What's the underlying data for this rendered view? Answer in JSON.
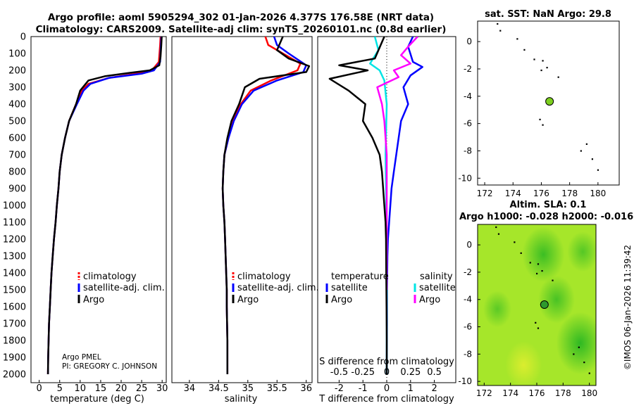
{
  "header": {
    "title_line1": "Argo profile: aoml 5905294_302 01-Jan-2026 4.377S 176.58E (NRT data)",
    "title_line2": "Climatology: CARS2009. Satellite-adj clim: synTS_20260101.nc (0.8d earlier)"
  },
  "footer": {
    "imos_stamp": "©IMOS 06-Jan-2026 11:39:42",
    "argo_credit": "Argo PMEL",
    "pi_credit": "PI: GREGORY C. JOHNSON"
  },
  "colors": {
    "argo": "#000000",
    "climatology": "#ff0000",
    "satellite_clim": "#0000ff",
    "temp_diff_satellite": "#0000ff",
    "sal_diff_satellite": "#00e5e5",
    "sal_diff_argo": "#ff00ff",
    "map_marker": "#7ccf1f"
  },
  "chart_data": [
    {
      "type": "line",
      "title": "",
      "xlabel": "temperature (deg C)",
      "ylabel": "",
      "xlim": [
        -2,
        31
      ],
      "ylim": [
        2050,
        0
      ],
      "xticks": [
        0,
        5,
        10,
        15,
        20,
        25,
        30
      ],
      "yticks": [
        0,
        100,
        200,
        300,
        400,
        500,
        600,
        700,
        800,
        900,
        1000,
        1100,
        1200,
        1300,
        1400,
        1500,
        1600,
        1700,
        1800,
        1900,
        2000
      ],
      "legend": [
        "climatology",
        "satellite-adj. clim.",
        "Argo"
      ],
      "series": [
        {
          "name": "climatology",
          "color": "#ff0000",
          "x": [
            29.6,
            29.5,
            29.2,
            27.5,
            23.5,
            17.0,
            12.0,
            10.4,
            9.0,
            7.3,
            6.3,
            5.5,
            5.0,
            4.7,
            4.3,
            4.0,
            3.6,
            3.3,
            3.0,
            2.8,
            2.6,
            2.4,
            2.3,
            2.2,
            2.15
          ],
          "y": [
            0,
            50,
            150,
            200,
            220,
            245,
            280,
            320,
            400,
            500,
            600,
            700,
            800,
            900,
            1000,
            1100,
            1200,
            1300,
            1400,
            1500,
            1600,
            1700,
            1800,
            1900,
            2000
          ]
        },
        {
          "name": "satellite-adj. clim.",
          "color": "#0000ff",
          "x": [
            29.8,
            29.7,
            29.5,
            28.0,
            25.0,
            17.0,
            12.5,
            10.8,
            9.2,
            7.3,
            6.3,
            5.5,
            5.0,
            4.7,
            4.3,
            4.0,
            3.6,
            3.3,
            3.0,
            2.8,
            2.6,
            2.4,
            2.3,
            2.2,
            2.15
          ],
          "y": [
            0,
            50,
            150,
            200,
            220,
            245,
            280,
            320,
            400,
            500,
            600,
            700,
            800,
            900,
            1000,
            1100,
            1200,
            1300,
            1400,
            1500,
            1600,
            1700,
            1800,
            1900,
            2000
          ]
        },
        {
          "name": "Argo",
          "color": "#000000",
          "x": [
            29.9,
            29.8,
            29.6,
            29.3,
            27.0,
            22.0,
            16.0,
            12.0,
            10.0,
            9.0,
            7.3,
            6.3,
            5.5,
            5.0,
            4.7,
            4.3,
            4.0,
            3.6,
            3.3,
            3.0,
            2.8,
            2.6,
            2.4,
            2.3,
            2.2,
            2.15
          ],
          "y": [
            0,
            50,
            120,
            170,
            200,
            215,
            235,
            260,
            320,
            400,
            500,
            600,
            700,
            800,
            900,
            1000,
            1100,
            1200,
            1300,
            1400,
            1500,
            1600,
            1700,
            1800,
            1900,
            2000
          ]
        }
      ]
    },
    {
      "type": "line",
      "title": "",
      "xlabel": "salinity",
      "ylabel": "",
      "xlim": [
        33.7,
        36.1
      ],
      "ylim": [
        2050,
        0
      ],
      "xticks": [
        34,
        34.5,
        35,
        35.5,
        36
      ],
      "legend": [
        "climatology",
        "satellite-adj. clim.",
        "Argo"
      ],
      "series": [
        {
          "name": "climatology",
          "color": "#ff0000",
          "x": [
            35.3,
            35.35,
            35.6,
            35.9,
            35.85,
            35.4,
            35.05,
            34.88,
            34.75,
            34.67,
            34.6,
            34.58,
            34.57,
            34.58,
            34.6,
            34.61,
            34.62,
            34.63,
            34.64,
            34.64,
            34.65,
            34.65
          ],
          "y": [
            0,
            50,
            100,
            160,
            200,
            260,
            320,
            400,
            500,
            600,
            700,
            800,
            900,
            1000,
            1100,
            1200,
            1300,
            1400,
            1500,
            1600,
            1800,
            2000
          ]
        },
        {
          "name": "satellite-adj. clim.",
          "color": "#0000ff",
          "x": [
            35.45,
            35.5,
            35.7,
            36.0,
            35.95,
            35.5,
            35.1,
            34.9,
            34.76,
            34.67,
            34.6,
            34.58,
            34.57,
            34.58,
            34.6,
            34.61,
            34.62,
            34.63,
            34.64,
            34.64,
            34.65,
            34.65
          ],
          "y": [
            0,
            50,
            100,
            170,
            210,
            260,
            320,
            400,
            500,
            600,
            700,
            800,
            900,
            1000,
            1100,
            1200,
            1300,
            1400,
            1500,
            1600,
            1800,
            2000
          ]
        },
        {
          "name": "Argo",
          "color": "#000000",
          "x": [
            35.6,
            35.55,
            35.5,
            35.7,
            36.05,
            36.0,
            35.2,
            34.95,
            34.85,
            34.72,
            34.65,
            34.6,
            34.58,
            34.57,
            34.58,
            34.6,
            34.61,
            34.62,
            34.63,
            34.64,
            34.64,
            34.65,
            34.65
          ],
          "y": [
            0,
            40,
            80,
            130,
            175,
            210,
            250,
            300,
            400,
            500,
            600,
            700,
            800,
            900,
            1000,
            1100,
            1200,
            1300,
            1400,
            1500,
            1600,
            1800,
            2000
          ]
        }
      ]
    },
    {
      "type": "line",
      "title": "",
      "xlabel": "T difference from climatology",
      "xlabel_top": "S difference from climatology",
      "ylabel": "",
      "xlim": [
        -2.9,
        2.9
      ],
      "ylim": [
        2050,
        0
      ],
      "xticks": [
        -2,
        -1.5,
        -1,
        -0.5,
        0,
        0.5,
        1,
        1.5,
        2
      ],
      "xticks_top": [
        "-0.5",
        "-0.25",
        "0",
        "0.25",
        "0.5"
      ],
      "legend_temperature_title": "temperature",
      "legend_salinity_title": "salinity",
      "legend_temperature": [
        "satellite",
        "Argo"
      ],
      "legend_salinity": [
        "satellite",
        "Argo"
      ],
      "series": [
        {
          "name": "temperature satellite",
          "color": "#0000ff",
          "x": [
            1.1,
            0.9,
            1.1,
            1.5,
            1.0,
            0.7,
            0.9,
            0.6,
            0.5,
            0.4,
            0.3,
            0.2,
            0.15,
            0.1,
            0.05,
            0.03,
            0.02,
            0.01,
            0.01,
            0.0,
            0.0
          ],
          "y": [
            0,
            60,
            150,
            180,
            230,
            300,
            400,
            500,
            600,
            700,
            800,
            900,
            1000,
            1100,
            1200,
            1300,
            1400,
            1500,
            1700,
            1900,
            2000
          ]
        },
        {
          "name": "temperature Argo",
          "color": "#000000",
          "x": [
            -0.1,
            -0.5,
            -2.0,
            -0.8,
            -2.4,
            -1.6,
            -0.9,
            -1.0,
            -0.6,
            -0.3,
            -0.2,
            -0.15,
            -0.1,
            -0.05,
            -0.03,
            -0.02,
            -0.01,
            0.0,
            0.0
          ],
          "y": [
            0,
            130,
            170,
            200,
            250,
            320,
            400,
            500,
            600,
            700,
            800,
            900,
            1000,
            1100,
            1200,
            1400,
            1600,
            1800,
            2000
          ]
        },
        {
          "name": "salinity satellite",
          "color": "#00e5e5",
          "x": [
            -0.5,
            -0.35,
            -0.7,
            -0.3,
            -0.1,
            0.0,
            -0.05,
            0.0,
            0.0
          ],
          "y": [
            0,
            80,
            160,
            200,
            260,
            400,
            700,
            1200,
            2000
          ]
        },
        {
          "name": "salinity Argo",
          "color": "#ff00ff",
          "x": [
            1.3,
            0.9,
            0.6,
            1.0,
            0.3,
            0.5,
            -0.4,
            -0.2,
            -0.1,
            0.0,
            0.0
          ],
          "y": [
            0,
            60,
            110,
            160,
            200,
            240,
            300,
            400,
            500,
            700,
            1500
          ]
        }
      ]
    },
    {
      "type": "scatter",
      "title": "sat. SST: NaN Argo: 29.8",
      "xlim": [
        171.5,
        181.5
      ],
      "ylim": [
        -10.5,
        1.5
      ],
      "xticks": [
        172,
        174,
        176,
        178,
        180
      ],
      "yticks": [
        0,
        -2,
        -4,
        -6,
        -8,
        -10
      ],
      "float_position": {
        "lon": 176.58,
        "lat": -4.377
      },
      "islands": [
        [
          172.9,
          1.3
        ],
        [
          173.1,
          0.8
        ],
        [
          174.3,
          0.2
        ],
        [
          174.8,
          -0.6
        ],
        [
          175.5,
          -1.3
        ],
        [
          176.1,
          -1.4
        ],
        [
          176.4,
          -1.9
        ],
        [
          176.0,
          -2.1
        ],
        [
          177.2,
          -2.6
        ],
        [
          175.9,
          -5.7
        ],
        [
          176.1,
          -6.1
        ],
        [
          179.2,
          -7.5
        ],
        [
          178.8,
          -8.0
        ],
        [
          179.6,
          -8.6
        ],
        [
          180.0,
          -9.4
        ]
      ]
    },
    {
      "type": "heatmap",
      "title": "Altim. SLA: 0.1",
      "subtitle": "Argo h1000: -0.028 h2000: -0.016",
      "xlim": [
        171.5,
        180.5
      ],
      "ylim": [
        -10.3,
        1.5
      ],
      "xticks": [
        172,
        174,
        176,
        178,
        180
      ],
      "yticks": [
        0,
        -2,
        -4,
        -6,
        -8,
        -10
      ],
      "float_position": {
        "lon": 176.58,
        "lat": -4.377
      },
      "islands": [
        [
          172.9,
          1.3
        ],
        [
          173.1,
          0.8
        ],
        [
          174.3,
          0.2
        ],
        [
          174.8,
          -0.6
        ],
        [
          175.5,
          -1.3
        ],
        [
          176.1,
          -1.4
        ],
        [
          176.4,
          -1.9
        ],
        [
          176.0,
          -2.1
        ],
        [
          177.2,
          -2.6
        ],
        [
          175.9,
          -5.7
        ],
        [
          176.1,
          -6.1
        ],
        [
          179.2,
          -7.5
        ],
        [
          178.8,
          -8.0
        ],
        [
          179.6,
          -8.6
        ],
        [
          180.0,
          -9.4
        ]
      ],
      "features": [
        {
          "lon": 176.5,
          "lat": -0.7,
          "sla": 0.4
        },
        {
          "lon": 177.5,
          "lat": -4.0,
          "sla": 0.3
        },
        {
          "lon": 179.3,
          "lat": -7.2,
          "sla": 0.5
        },
        {
          "lon": 175.0,
          "lat": -8.8,
          "sla": -0.3
        },
        {
          "lon": 173.0,
          "lat": -4.7,
          "sla": 0.15
        },
        {
          "lon": 179.5,
          "lat": -0.5,
          "sla": 0.2
        }
      ]
    }
  ]
}
